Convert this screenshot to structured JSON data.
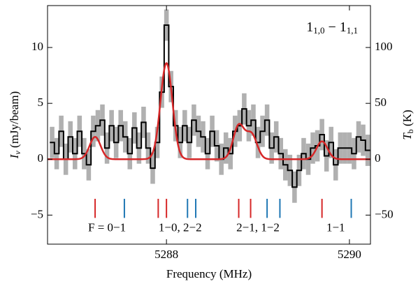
{
  "chart_data": {
    "type": "step",
    "xlabel": "Frequency (MHz)",
    "ylabel": [
      "I",
      "ν",
      " (mJy/beam)"
    ],
    "y2label": [
      "T",
      "b",
      " (K)"
    ],
    "transition": [
      "1",
      "1,0",
      " − 1",
      "1,1"
    ],
    "annotations": [
      {
        "text": "F = 0−1",
        "x": 5287.35
      },
      {
        "text": "1−0, 2−2",
        "x": 5288.15
      },
      {
        "text": "2−1,  1−2",
        "x": 5289.0
      },
      {
        "text": "1−1",
        "x": 5289.85
      }
    ],
    "xlim": [
      5286.7,
      5290.23
    ],
    "xticks": [
      5288,
      5290
    ],
    "ylim": [
      -7.6,
      13.75
    ],
    "yticks": [
      {
        "value": -5,
        "label": "−5"
      },
      0,
      5,
      10
    ],
    "y2lim": [
      -76,
      137.5
    ],
    "y2ticks": [
      {
        "value": -50,
        "label": "−50"
      },
      0,
      50,
      100
    ],
    "x": [
      5286.75,
      5286.8,
      5286.85,
      5286.9,
      5286.95,
      5287.0,
      5287.05,
      5287.1,
      5287.15,
      5287.2,
      5287.25,
      5287.3,
      5287.35,
      5287.4,
      5287.45,
      5287.5,
      5287.55,
      5287.6,
      5287.65,
      5287.7,
      5287.75,
      5287.8,
      5287.85,
      5287.9,
      5287.95,
      5288.0,
      5288.05,
      5288.1,
      5288.15,
      5288.2,
      5288.25,
      5288.3,
      5288.35,
      5288.4,
      5288.45,
      5288.5,
      5288.55,
      5288.6,
      5288.65,
      5288.7,
      5288.75,
      5288.8,
      5288.85,
      5288.9,
      5288.95,
      5289.0,
      5289.05,
      5289.1,
      5289.15,
      5289.2,
      5289.25,
      5289.3,
      5289.35,
      5289.4,
      5289.45,
      5289.5,
      5289.55,
      5289.6,
      5289.65,
      5289.7,
      5289.75,
      5289.8,
      5289.85,
      5289.9,
      5289.95,
      5290.0,
      5290.05,
      5290.1,
      5290.15,
      5290.2
    ],
    "values": [
      1.5,
      0.5,
      2.5,
      0,
      2,
      0.5,
      2.5,
      0.5,
      -0.5,
      2.5,
      3,
      3.5,
      1,
      3,
      1.5,
      3,
      2,
      0.5,
      2.8,
      1,
      3.3,
      1,
      -0.8,
      1.5,
      6,
      12,
      6.5,
      3,
      1.5,
      3,
      1.5,
      3.5,
      2.5,
      2,
      0.5,
      2.5,
      1.2,
      0,
      1,
      0.5,
      2.5,
      3,
      4.5,
      3,
      3.5,
      1.5,
      2.5,
      3.5,
      1,
      2,
      0.5,
      -0.5,
      -1,
      -2.5,
      -1,
      0.5,
      0,
      1,
      1.2,
      2.2,
      0.3,
      1.5,
      -0.5,
      1,
      1,
      1,
      0.5,
      2,
      1.7,
      0.8
    ],
    "color": "#000000",
    "error": 1.4,
    "error_color": "#b0b0b0",
    "fit_color": "#d62728",
    "fit_components": [
      {
        "center": 5287.22,
        "amplitude": 2.0,
        "sigma": 0.06
      },
      {
        "center": 5288.0,
        "amplitude": 8.6,
        "sigma": 0.065
      },
      {
        "center": 5288.79,
        "amplitude": 3.0,
        "sigma": 0.06
      },
      {
        "center": 5288.93,
        "amplitude": 2.2,
        "sigma": 0.06
      },
      {
        "center": 5289.7,
        "amplitude": 1.6,
        "sigma": 0.06
      }
    ],
    "markers": [
      {
        "color": "#d62728",
        "x": [
          5287.22,
          5287.91,
          5288.0,
          5288.79,
          5288.92,
          5289.7
        ]
      },
      {
        "color": "#1f77b4",
        "x": [
          5287.54,
          5288.23,
          5288.32,
          5289.1,
          5289.24,
          5290.02
        ]
      }
    ]
  }
}
